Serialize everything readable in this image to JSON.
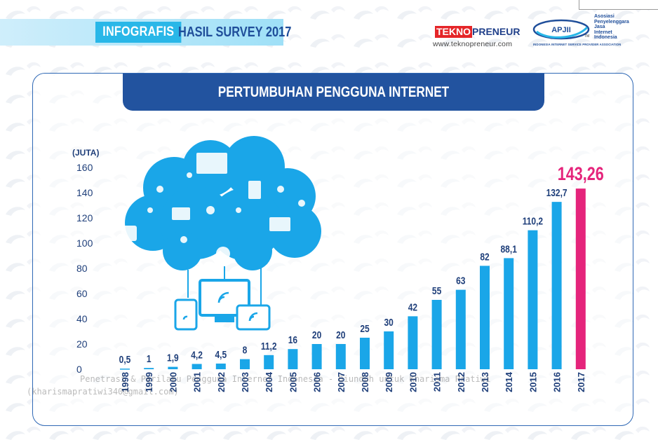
{
  "header": {
    "tag": "INFOGRAFIS",
    "title": "HASIL SURVEY 2017"
  },
  "logos": {
    "tekno_red": "TEKNO",
    "tekno_blue": "PRENEUR",
    "tekno_url": "www.teknopreneur.com",
    "apjii_name": "APJII",
    "apjii_tm": "TM",
    "apjii_lines": [
      "Asosiasi",
      "Penyelenggara",
      "Jasa",
      "Internet",
      "Indonesia"
    ],
    "apjii_sub": "INDONESIA INTERNET SERVICE PROVIDER ASSOCIATION"
  },
  "watermark": {
    "line1": "Penetrasi & Perilaku Pengguna Internet Indonesia - Diunduh untuk Kharisma Pratiwi",
    "line2": "(kharismapratiwi340@gmail.com)"
  },
  "colors": {
    "bar": "#1aa6e8",
    "highlight_bar": "#e5247b",
    "banner": "#22539f",
    "label": "#1f3f7a",
    "highlight_label": "#e5247b"
  },
  "chart_data": {
    "type": "bar",
    "title": "PERTUMBUHAN PENGGUNA INTERNET",
    "ylabel": "(JUTA)",
    "xlabel": "",
    "ylim": [
      0,
      160
    ],
    "yticks": [
      0,
      20,
      40,
      60,
      80,
      100,
      120,
      140,
      160
    ],
    "grid": false,
    "categories": [
      "1998",
      "1999",
      "2000",
      "2001",
      "2002",
      "2003",
      "2004",
      "2005",
      "2006",
      "2007",
      "2008",
      "2009",
      "2010",
      "2011",
      "2012",
      "2013",
      "2014",
      "2015",
      "2016",
      "2017"
    ],
    "values": [
      0.5,
      1,
      1.9,
      4.2,
      4.5,
      8,
      11.2,
      16,
      20,
      20,
      25,
      30,
      42,
      55,
      63,
      82,
      88.1,
      110.2,
      132.7,
      143.26
    ],
    "data_labels": [
      "0,5",
      "1",
      "1,9",
      "4,2",
      "4,5",
      "8",
      "11,2",
      "16",
      "20",
      "20",
      "25",
      "30",
      "42",
      "55",
      "63",
      "82",
      "88,1",
      "110,2",
      "132,7",
      "143,26"
    ],
    "highlight_index": 19
  }
}
